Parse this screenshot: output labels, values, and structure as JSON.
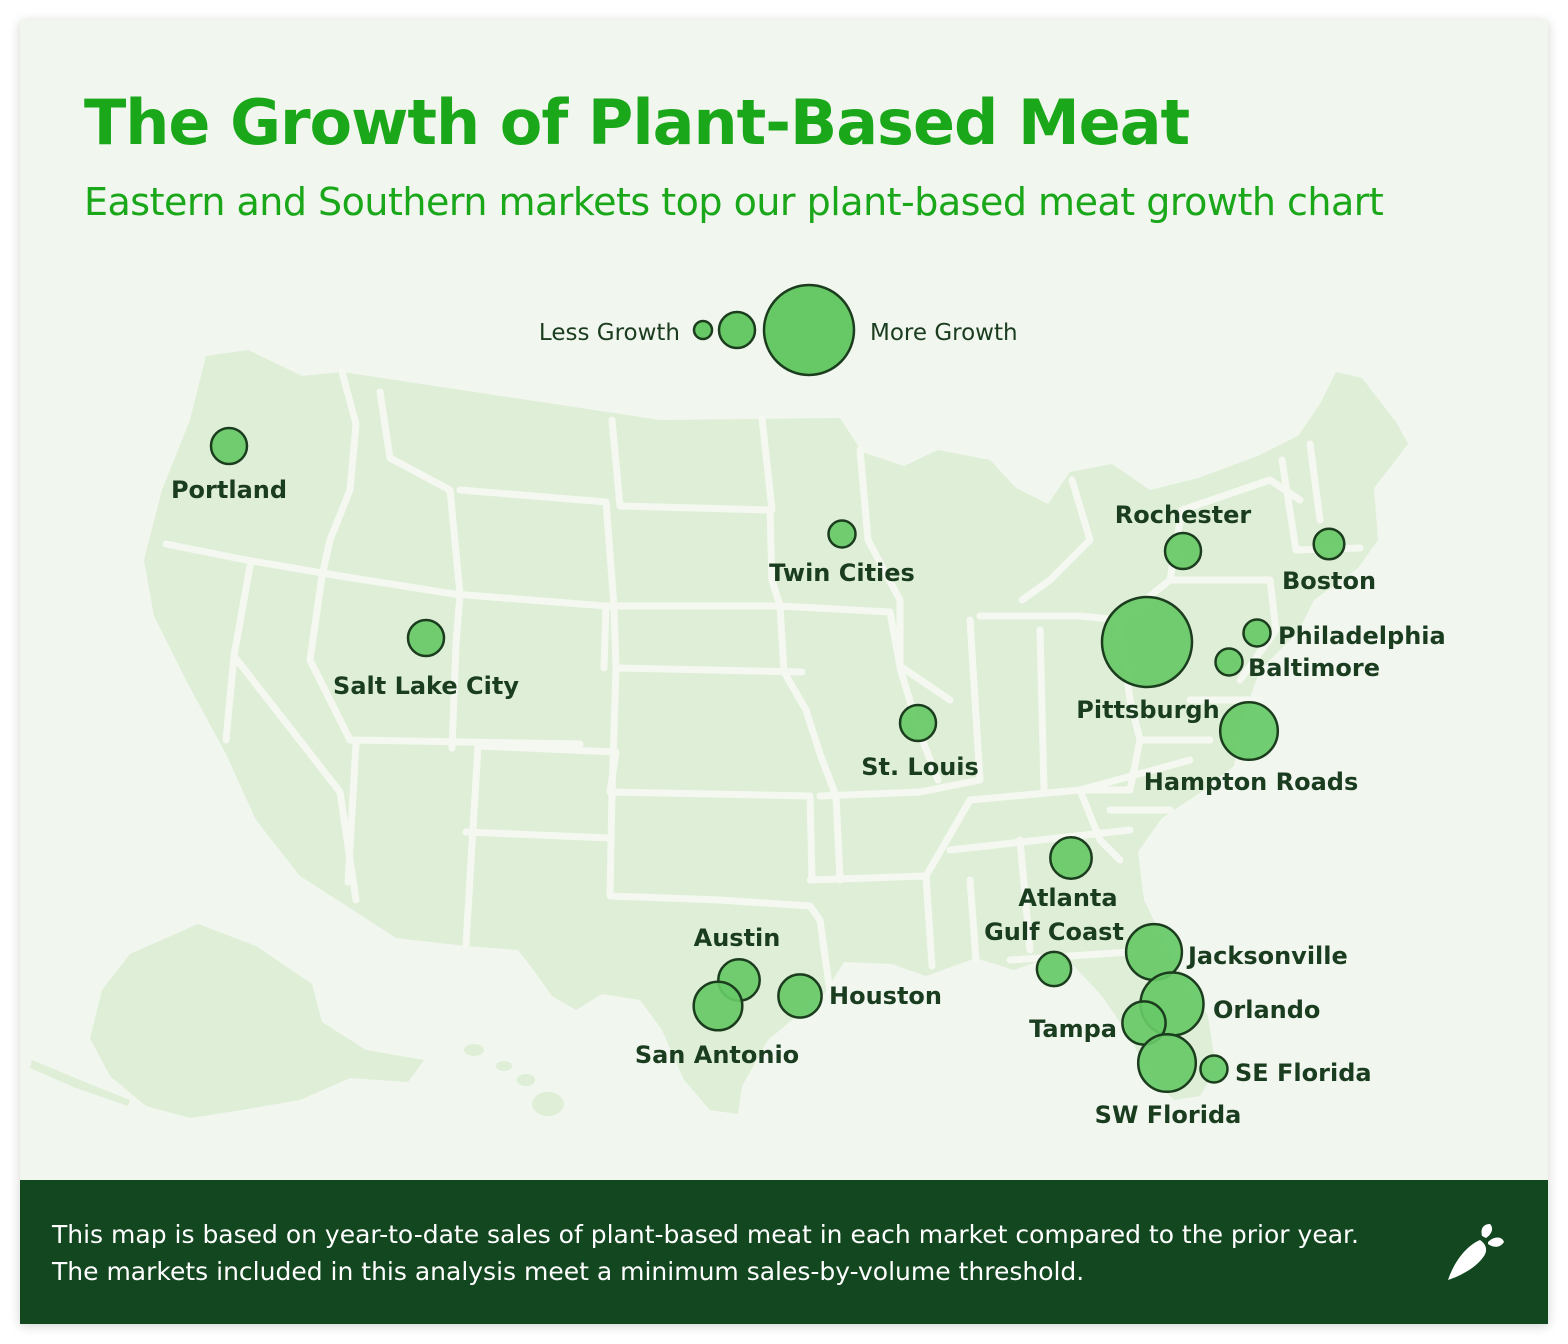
{
  "title": "The Growth of Plant-Based Meat",
  "subtitle": "Eastern and Southern markets top our plant-based meat growth chart",
  "legend": {
    "less_label": "Less Growth",
    "more_label": "More Growth",
    "levels": [
      1,
      2,
      5
    ]
  },
  "markets": [
    {
      "name": "Portland",
      "growth": 2
    },
    {
      "name": "Salt Lake City",
      "growth": 2
    },
    {
      "name": "Twin Cities",
      "growth": 1.5
    },
    {
      "name": "St. Louis",
      "growth": 2
    },
    {
      "name": "Rochester",
      "growth": 2
    },
    {
      "name": "Boston",
      "growth": 1.7
    },
    {
      "name": "Pittsburgh",
      "growth": 5
    },
    {
      "name": "Philadelphia",
      "growth": 1.5
    },
    {
      "name": "Baltimore",
      "growth": 1.5
    },
    {
      "name": "Hampton Roads",
      "growth": 3.2
    },
    {
      "name": "Atlanta",
      "growth": 2.3
    },
    {
      "name": "Gulf Coast",
      "growth": 1.9
    },
    {
      "name": "Jacksonville",
      "growth": 3.1
    },
    {
      "name": "Orlando",
      "growth": 3.5
    },
    {
      "name": "Tampa",
      "growth": 2.4
    },
    {
      "name": "SW Florida",
      "growth": 3.2
    },
    {
      "name": "SE Florida",
      "growth": 1.5
    },
    {
      "name": "Austin",
      "growth": 2.3
    },
    {
      "name": "Houston",
      "growth": 2.4
    },
    {
      "name": "San Antonio",
      "growth": 2.7
    }
  ],
  "footer_text": "This map is based on year-to-date sales of plant-based meat in each market compared to the prior year. The markets included in this analysis meet a minimum sales-by-volume threshold.",
  "logo_icon": "carrot-icon",
  "colors": {
    "title": "#1aa71a",
    "background": "#f1f6ee",
    "land": "#dfeed7",
    "state_border": "#f4f8f1",
    "bubble_fill": "#66c966",
    "bubble_stroke": "#1b3d1e",
    "label": "#1a3c1f",
    "footer_bg": "#134720",
    "footer_text": "#ffffff"
  }
}
